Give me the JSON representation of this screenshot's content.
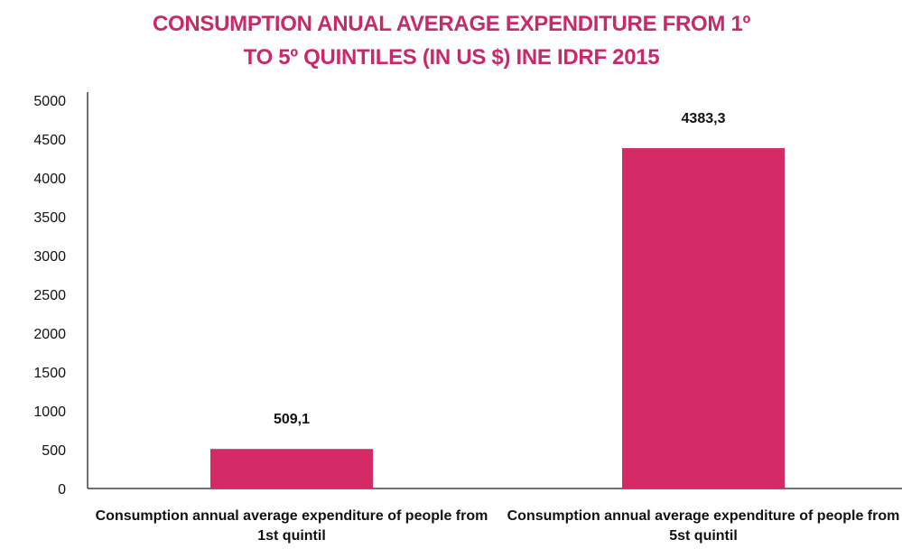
{
  "chart_data": {
    "type": "bar",
    "title": "CONSUMPTION ANUAL AVERAGE EXPENDITURE FROM 1º TO 5º QUINTILES (IN US $) INE IDRF 2015",
    "categories": [
      "Consumption annual average expenditure of people from 1st quintil",
      "Consumption annual average expenditure of people from 5st quintil"
    ],
    "values": [
      509.1,
      4383.3
    ],
    "data_labels": [
      "509,1",
      "4383,3"
    ],
    "xlabel": "",
    "ylabel": "",
    "ylim": [
      0,
      5000
    ],
    "y_ticks": [
      0,
      500,
      1000,
      1500,
      2000,
      2500,
      3000,
      3500,
      4000,
      4500,
      5000
    ],
    "grid": false,
    "legend": "none"
  },
  "colors": {
    "bar": "#d42a66",
    "title": "#c8296b",
    "axis": "#444444"
  }
}
